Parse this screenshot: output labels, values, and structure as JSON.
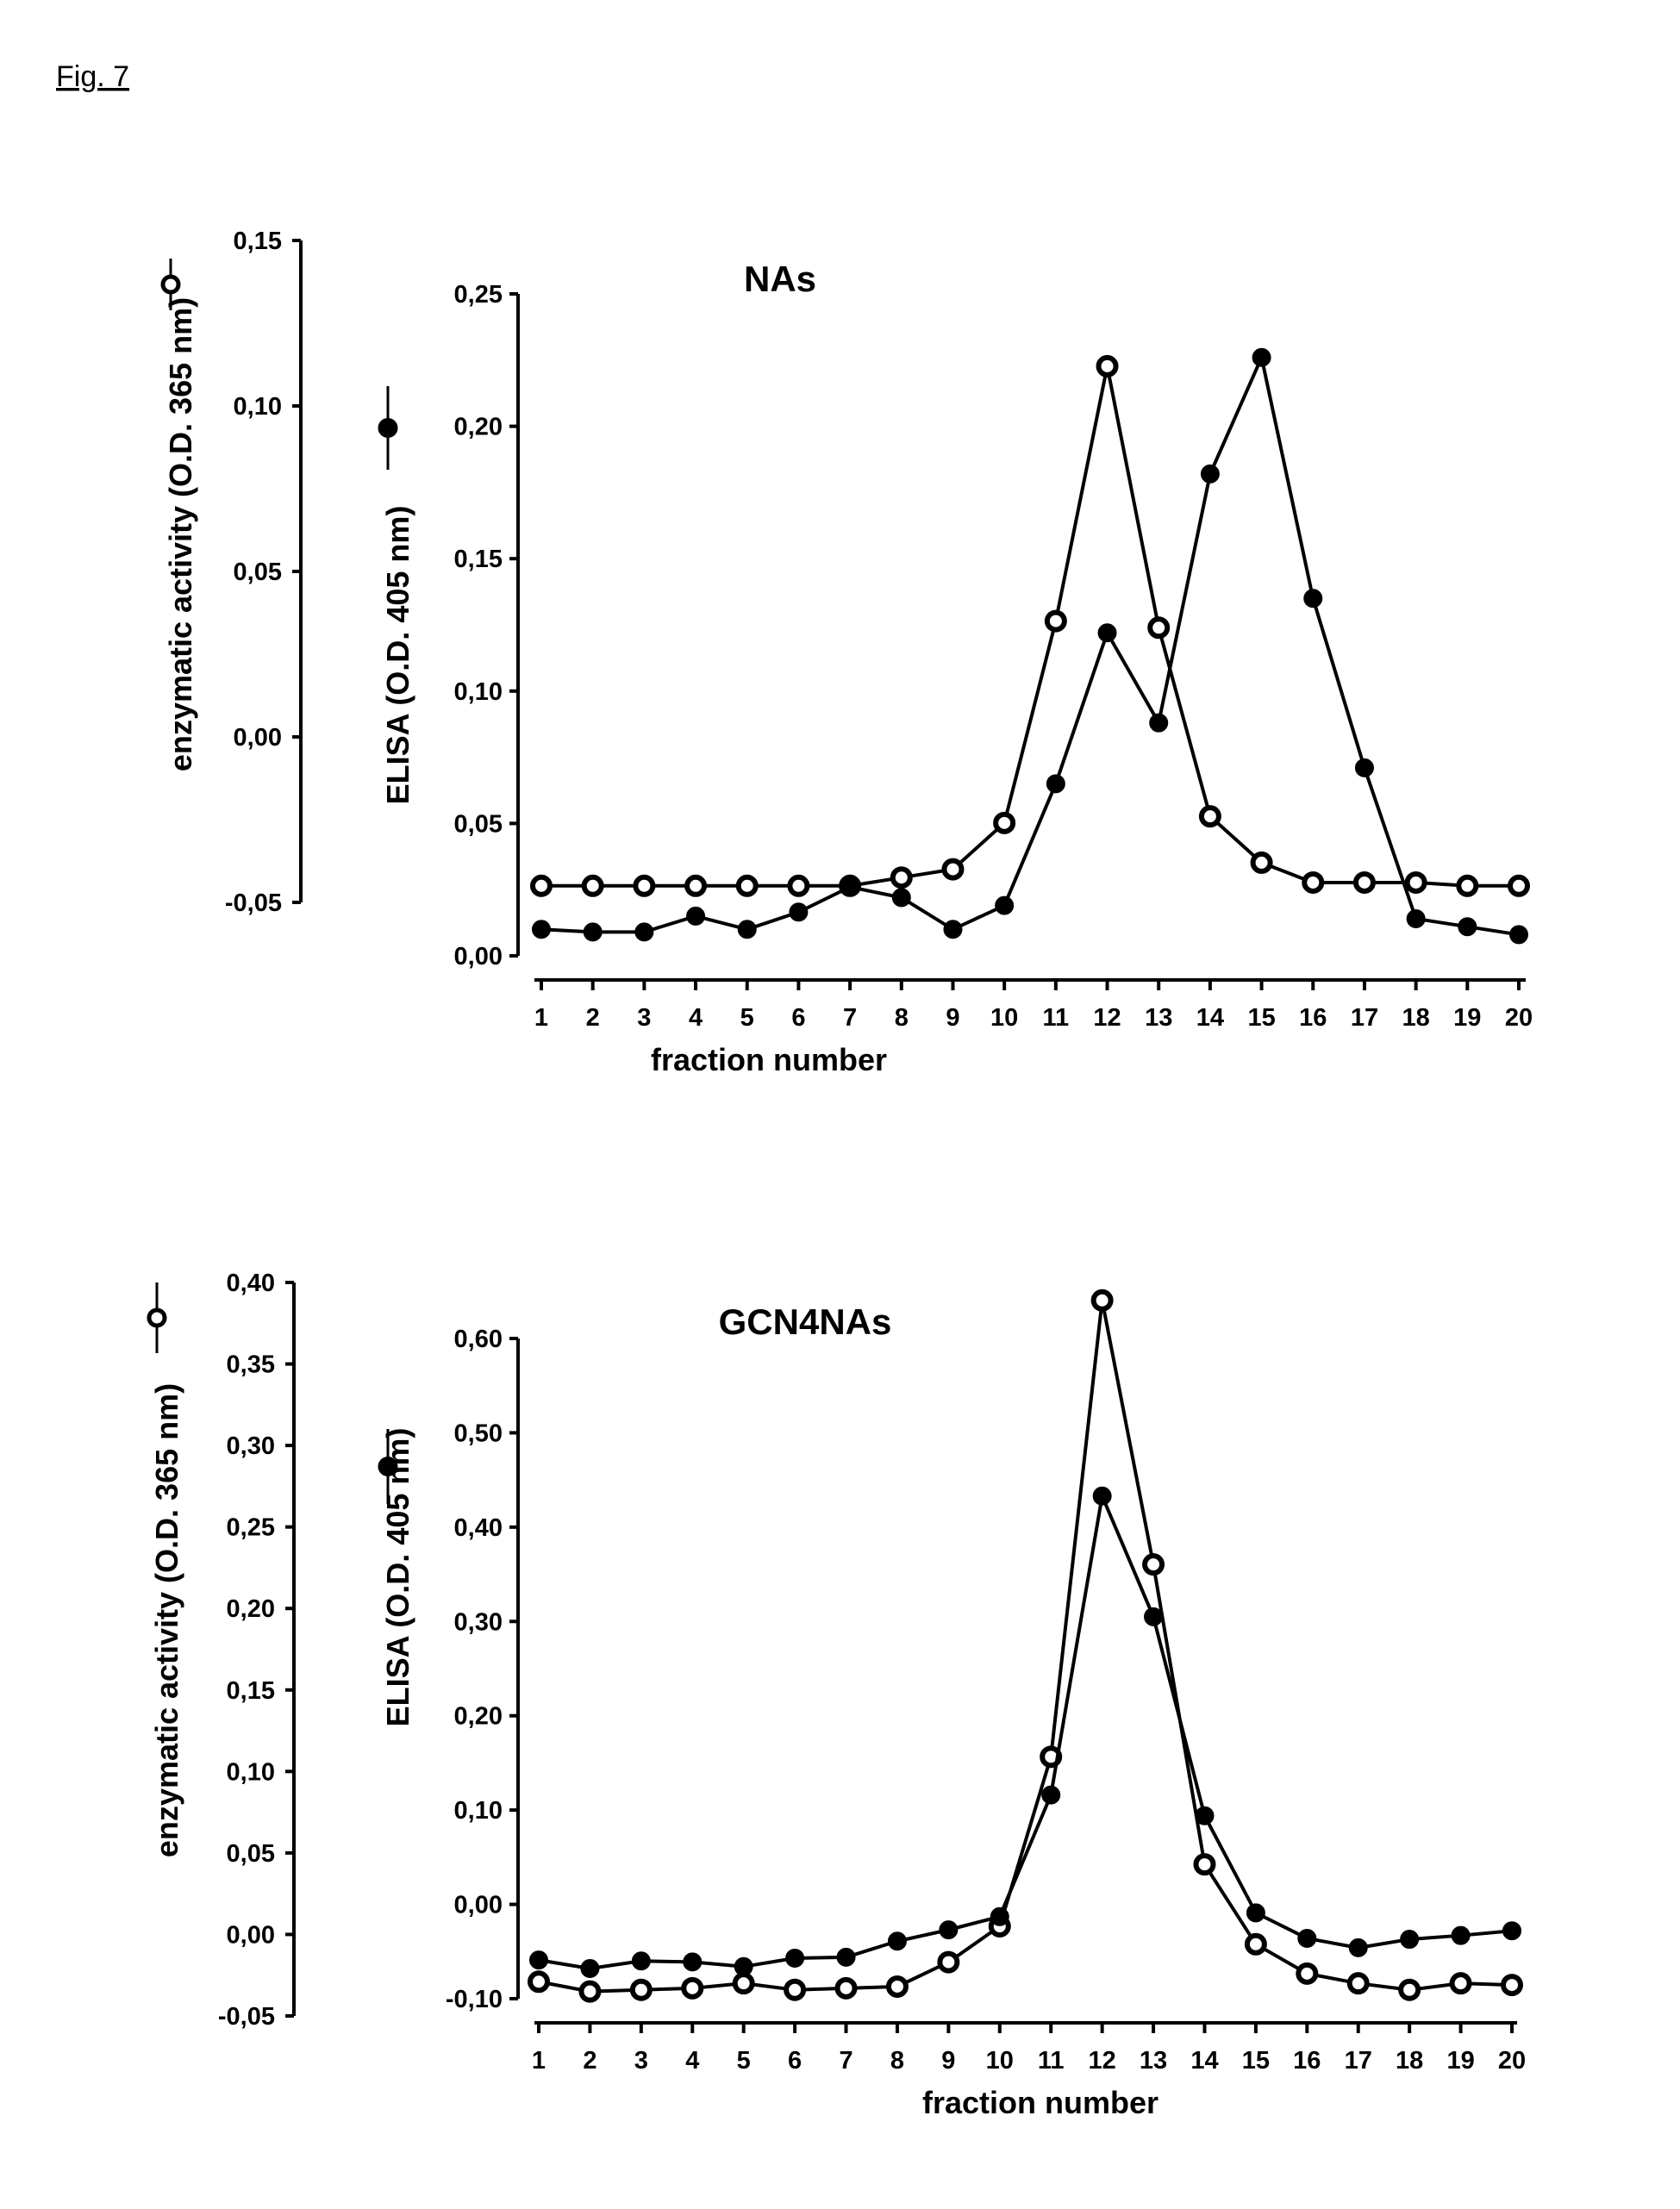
{
  "figure_label": "Fig. 7",
  "chart_data": [
    {
      "type": "line",
      "title": "NAs",
      "xlabel": "fraction number",
      "x": [
        1,
        2,
        3,
        4,
        5,
        6,
        7,
        8,
        9,
        10,
        11,
        12,
        13,
        14,
        15,
        16,
        17,
        18,
        19,
        20
      ],
      "x_tick_labels": [
        "1",
        "2",
        "3",
        "4",
        "5",
        "6",
        "7",
        "8",
        "9",
        "10",
        "11",
        "12",
        "13",
        "14",
        "15",
        "16",
        "17",
        "18",
        "19",
        "20"
      ],
      "left_axis": {
        "label": "enzymatic activity (O.D. 365 nm)",
        "ylim": [
          -0.05,
          0.15
        ],
        "tick_labels": [
          "-0,05",
          "0,00",
          "0,05",
          "0,10",
          "0,15"
        ],
        "ticks": [
          -0.05,
          0,
          0.05,
          0.1,
          0.15
        ]
      },
      "right_axis": {
        "label": "ELISA (O.D. 405 nm)",
        "ylim": [
          0,
          0.25
        ],
        "tick_labels": [
          "0,00",
          "0,05",
          "0,10",
          "0,15",
          "0,20",
          "0,25"
        ],
        "ticks": [
          0,
          0.05,
          0.1,
          0.15,
          0.2,
          0.25
        ]
      },
      "series": [
        {
          "marker": "open-circle",
          "axis": "left",
          "values": [
            -0.045,
            -0.045,
            -0.045,
            -0.045,
            -0.045,
            -0.045,
            -0.045,
            -0.0425,
            -0.04,
            -0.026,
            0.035,
            0.112,
            0.033,
            -0.024,
            -0.038,
            -0.044,
            -0.044,
            -0.044,
            -0.045,
            -0.045
          ]
        },
        {
          "marker": "filled-circle",
          "axis": "right",
          "values": [
            0.01,
            0.009,
            0.009,
            0.015,
            0.01,
            0.0165,
            0.026,
            0.022,
            0.01,
            0.019,
            0.065,
            0.122,
            0.088,
            0.182,
            0.226,
            0.135,
            0.071,
            0.014,
            0.011,
            0.008
          ]
        }
      ],
      "grid": false
    },
    {
      "type": "line",
      "title": "GCN4NAs",
      "xlabel": "fraction number",
      "x": [
        1,
        2,
        3,
        4,
        5,
        6,
        7,
        8,
        9,
        10,
        11,
        12,
        13,
        14,
        15,
        16,
        17,
        18,
        19,
        20
      ],
      "x_tick_labels": [
        "1",
        "2",
        "3",
        "4",
        "5",
        "6",
        "7",
        "8",
        "9",
        "10",
        "11",
        "12",
        "13",
        "14",
        "15",
        "16",
        "17",
        "18",
        "19",
        "20"
      ],
      "left_axis": {
        "label": "enzymatic activity (O.D. 365 nm)",
        "ylim": [
          -0.05,
          0.4
        ],
        "tick_labels": [
          "-0,05",
          "0,00",
          "0,05",
          "0,10",
          "0,15",
          "0,20",
          "0,25",
          "0,30",
          "0,35",
          "0,40"
        ],
        "ticks": [
          -0.05,
          0,
          0.05,
          0.1,
          0.15,
          0.2,
          0.25,
          0.3,
          0.35,
          0.4
        ]
      },
      "right_axis": {
        "label": "ELISA (O.D. 405 nm)",
        "ylim": [
          -0.1,
          0.6
        ],
        "tick_labels": [
          "-0,10",
          "0,00",
          "0,10",
          "0,20",
          "0,30",
          "0,40",
          "0,50",
          "0,60"
        ],
        "ticks": [
          -0.1,
          0,
          0.1,
          0.2,
          0.3,
          0.4,
          0.5,
          0.6
        ]
      },
      "series": [
        {
          "marker": "open-circle",
          "axis": "left",
          "values": [
            -0.029,
            -0.035,
            -0.034,
            -0.033,
            -0.03,
            -0.034,
            -0.033,
            -0.032,
            -0.017,
            0.005,
            0.109,
            0.389,
            0.227,
            0.043,
            -0.006,
            -0.024,
            -0.03,
            -0.034,
            -0.03,
            -0.031
          ]
        },
        {
          "marker": "filled-circle",
          "axis": "right",
          "values": [
            -0.059,
            -0.068,
            -0.06,
            -0.061,
            -0.066,
            -0.057,
            -0.056,
            -0.039,
            -0.027,
            -0.013,
            0.116,
            0.433,
            0.305,
            0.094,
            -0.009,
            -0.036,
            -0.046,
            -0.037,
            -0.033,
            -0.028
          ]
        }
      ],
      "grid": false
    }
  ]
}
